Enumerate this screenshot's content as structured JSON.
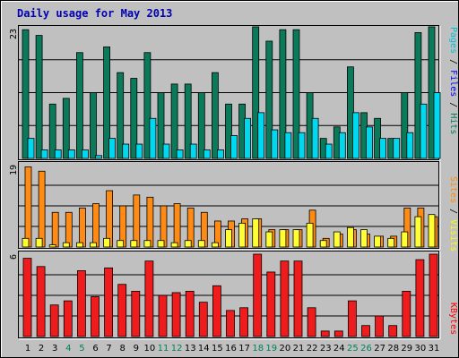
{
  "chart_data": [
    {
      "type": "bar",
      "title": "Daily usage for May 2013",
      "panel": "hits-pages-files",
      "ymax_label": "23",
      "ylim": [
        0,
        23
      ],
      "categories": [
        "1",
        "2",
        "3",
        "4",
        "5",
        "6",
        "7",
        "8",
        "9",
        "10",
        "11",
        "12",
        "13",
        "14",
        "15",
        "16",
        "17",
        "18",
        "19",
        "20",
        "21",
        "22",
        "23",
        "24",
        "25",
        "26",
        "27",
        "28",
        "29",
        "30",
        "31"
      ],
      "legend": [
        {
          "text": "Pages",
          "color": "#00c0d8"
        },
        {
          "text": "Files",
          "color": "#0000ff"
        },
        {
          "text": "Hits",
          "color": "#00805c"
        }
      ],
      "series": [
        {
          "name": "Hits",
          "color": "#0a7a5a",
          "values": [
            22.5,
            21.5,
            9.5,
            10.5,
            18.5,
            11.5,
            19.5,
            15.0,
            14.0,
            18.5,
            11.5,
            13.0,
            13.0,
            11.5,
            15.0,
            9.5,
            9.5,
            23.0,
            20.5,
            22.5,
            22.5,
            11.5,
            3.5,
            5.5,
            16.0,
            8.0,
            7.0,
            3.5,
            11.5,
            22.0,
            23.0
          ]
        },
        {
          "name": "Pages",
          "color": "#00d8f0",
          "values": [
            3.5,
            1.5,
            1.5,
            1.5,
            1.5,
            0.5,
            3.5,
            2.5,
            2.5,
            7.0,
            2.5,
            1.5,
            2.5,
            1.5,
            1.5,
            4.0,
            7.0,
            8.0,
            5.0,
            4.5,
            4.5,
            7.0,
            2.5,
            4.5,
            8.0,
            5.5,
            3.5,
            3.5,
            4.5,
            9.5,
            11.5
          ]
        }
      ]
    },
    {
      "type": "bar",
      "panel": "visits-sites",
      "ymax_label": "19",
      "ylim": [
        0,
        19
      ],
      "legend": [
        {
          "text": "Sites",
          "color": "#ff8c00"
        },
        {
          "text": "Visits",
          "color": "#ffff00"
        }
      ],
      "series": [
        {
          "name": "Visits",
          "color": "#ff8a14",
          "values": [
            18.5,
            17.5,
            8.0,
            8.0,
            9.0,
            10.0,
            13.0,
            9.5,
            12.0,
            11.5,
            9.5,
            10.0,
            9.0,
            8.0,
            6.0,
            6.0,
            6.5,
            6.5,
            4.0,
            4.0,
            4.0,
            8.5,
            2.0,
            3.0,
            4.0,
            3.0,
            2.5,
            2.5,
            9.0,
            9.0,
            7.0
          ]
        },
        {
          "name": "Sites",
          "color": "#ffff33",
          "values": [
            2.0,
            2.0,
            0.5,
            1.0,
            1.0,
            1.0,
            2.0,
            1.5,
            1.5,
            1.5,
            1.5,
            1.0,
            1.5,
            1.5,
            1.0,
            4.0,
            5.5,
            6.5,
            3.5,
            4.0,
            4.0,
            5.5,
            1.5,
            3.5,
            4.5,
            4.0,
            2.5,
            2.0,
            3.5,
            7.0,
            7.5
          ]
        }
      ]
    },
    {
      "type": "bar",
      "panel": "kbytes",
      "ymax_label": "6",
      "ylim": [
        0,
        6
      ],
      "legend": [
        {
          "text": "KBytes",
          "color": "#ff0000"
        }
      ],
      "series": [
        {
          "name": "KBytes",
          "color": "#ee1c1c",
          "values": [
            5.7,
            5.1,
            2.3,
            2.6,
            4.8,
            2.9,
            5.0,
            3.8,
            3.3,
            5.5,
            3.0,
            3.2,
            3.3,
            2.5,
            3.7,
            1.9,
            2.1,
            6.0,
            4.7,
            5.5,
            5.5,
            2.1,
            0.4,
            0.4,
            2.6,
            0.8,
            1.5,
            0.8,
            3.3,
            5.6,
            6.0
          ]
        }
      ]
    }
  ],
  "x_axis": {
    "labels": [
      "1",
      "2",
      "3",
      "4",
      "5",
      "6",
      "7",
      "8",
      "9",
      "10",
      "11",
      "12",
      "13",
      "14",
      "15",
      "16",
      "17",
      "18",
      "19",
      "20",
      "21",
      "22",
      "23",
      "24",
      "25",
      "26",
      "27",
      "28",
      "29",
      "30",
      "31"
    ],
    "weekend_days": [
      "4",
      "5",
      "11",
      "12",
      "18",
      "19",
      "25",
      "26"
    ],
    "weekday_color": "#000000",
    "weekend_color": "#00805c"
  },
  "legend_separator": " / "
}
